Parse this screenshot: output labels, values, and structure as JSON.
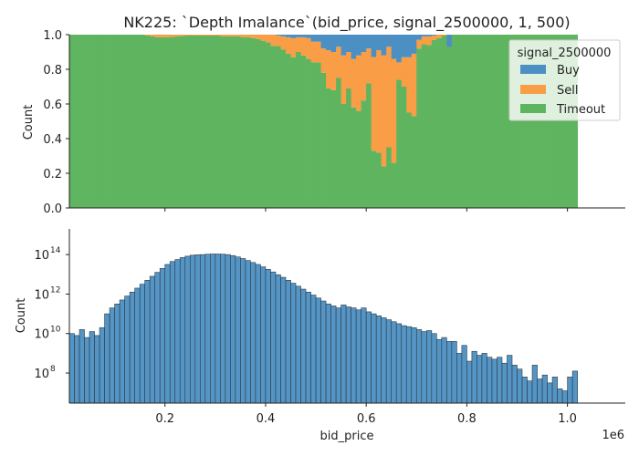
{
  "title": "NK225: `Depth Imalance`(bid_price, signal_2500000, 1, 500)",
  "colors": {
    "buy": "#4c8fc2",
    "sell": "#f99d46",
    "timeout": "#5fb55f",
    "hist_fill": "#4c8fc2",
    "hist_edge": "#2b3a47"
  },
  "chart_data": [
    {
      "type": "area",
      "subtype": "stacked-fill-histogram",
      "xlim": [
        10000,
        1115000
      ],
      "ylim": [
        0,
        1.0
      ],
      "ylabel": "Count",
      "yticks": [
        "0.0",
        "0.2",
        "0.4",
        "0.6",
        "0.8",
        "1.0"
      ],
      "ytick_values": [
        0,
        0.2,
        0.4,
        0.6,
        0.8,
        1.0
      ],
      "xticks_values": [
        200000,
        400000,
        600000,
        800000,
        1000000
      ],
      "legend_title": "signal_2500000",
      "legend_position": "upper right",
      "series": [
        {
          "name": "Buy",
          "key": "buy"
        },
        {
          "name": "Sell",
          "key": "sell"
        },
        {
          "name": "Timeout",
          "key": "timeout"
        }
      ],
      "bins": {
        "x_start": 10000,
        "bin_width": 10000,
        "timeout_top": [
          1,
          1,
          1,
          1,
          1,
          1,
          1,
          1,
          1,
          1,
          1,
          1,
          1,
          1,
          1,
          0.995,
          0.99,
          0.985,
          0.985,
          0.985,
          0.988,
          0.99,
          0.993,
          0.995,
          0.995,
          0.995,
          0.995,
          0.995,
          0.995,
          0.995,
          0.99,
          0.99,
          0.99,
          0.99,
          0.985,
          0.985,
          0.98,
          0.975,
          0.965,
          0.955,
          0.935,
          0.935,
          0.915,
          0.89,
          0.87,
          0.9,
          0.88,
          0.86,
          0.84,
          0.84,
          0.78,
          0.69,
          0.68,
          0.75,
          0.6,
          0.69,
          0.58,
          0.56,
          0.62,
          0.72,
          0.33,
          0.32,
          0.24,
          0.35,
          0.26,
          0.74,
          0.7,
          0.55,
          0.53,
          0.92,
          0.945,
          0.94,
          0.97,
          0.98,
          0.995,
          1,
          1,
          1,
          1,
          1,
          1,
          1,
          1,
          1,
          1,
          1,
          1,
          1,
          1,
          1,
          1,
          1,
          1,
          1,
          1,
          1,
          1,
          1,
          1,
          1,
          1
        ],
        "sell_top": [
          1,
          1,
          1,
          1,
          1,
          1,
          1,
          1,
          1,
          1,
          1,
          1,
          1,
          1,
          1,
          1,
          1,
          1,
          1,
          1,
          1,
          1,
          1,
          1,
          1,
          1,
          1,
          1,
          1,
          1,
          1,
          1,
          1,
          1,
          1,
          1,
          1,
          1,
          1,
          1,
          1,
          0.995,
          0.99,
          0.985,
          0.98,
          0.985,
          0.985,
          0.98,
          0.96,
          0.96,
          0.92,
          0.91,
          0.9,
          0.93,
          0.88,
          0.9,
          0.86,
          0.88,
          0.9,
          0.92,
          0.87,
          0.91,
          0.88,
          0.93,
          0.86,
          0.84,
          0.87,
          0.87,
          0.89,
          0.97,
          0.99,
          0.99,
          0.995,
          1,
          1,
          0.93,
          1,
          1,
          1,
          1,
          1,
          1,
          1,
          1,
          1,
          1,
          1,
          1,
          1,
          1,
          1,
          1,
          1,
          1,
          1,
          1,
          1,
          1,
          1,
          1,
          1
        ],
        "buy_top": [
          1,
          1,
          1,
          1,
          1,
          1,
          1,
          1,
          1,
          1,
          1,
          1,
          1,
          1,
          1,
          1,
          1,
          1,
          1,
          1,
          1,
          1,
          1,
          1,
          1,
          1,
          1,
          1,
          1,
          1,
          1,
          1,
          1,
          1,
          1,
          1,
          1,
          1,
          1,
          1,
          1,
          1,
          1,
          1,
          1,
          1,
          1,
          1,
          1,
          1,
          1,
          1,
          1,
          1,
          1,
          1,
          1,
          1,
          1,
          1,
          1,
          1,
          1,
          1,
          1,
          1,
          1,
          1,
          1,
          1,
          1,
          1,
          1,
          1,
          1,
          1,
          1,
          1,
          1,
          1,
          1,
          1,
          1,
          1,
          1,
          1,
          1,
          1,
          1,
          1,
          1,
          1,
          1,
          1,
          1,
          1,
          1,
          1,
          1,
          1,
          1,
          1
        ]
      }
    },
    {
      "type": "bar",
      "subtype": "histogram",
      "xlabel": "bid_price",
      "ylabel": "Count",
      "y_scale": "log",
      "ylim": [
        3000000,
        2000000000000000
      ],
      "xlim": [
        10000,
        1115000
      ],
      "yticks": [
        {
          "label_base": "10",
          "label_exp": "8",
          "value": 100000000
        },
        {
          "label_base": "10",
          "label_exp": "10",
          "value": 10000000000
        },
        {
          "label_base": "10",
          "label_exp": "12",
          "value": 1000000000000
        },
        {
          "label_base": "10",
          "label_exp": "14",
          "value": 100000000000000
        }
      ],
      "xticks": [
        "0.2",
        "0.4",
        "0.6",
        "0.8",
        "1.0"
      ],
      "xticks_values": [
        200000,
        400000,
        600000,
        800000,
        1000000
      ],
      "x_offset_label": "1e6",
      "bins": {
        "x_start": 10000,
        "bin_width": 10000,
        "log10_counts": [
          10.0,
          9.9,
          10.2,
          9.8,
          10.1,
          9.9,
          10.3,
          11.0,
          11.3,
          11.5,
          11.7,
          11.9,
          12.1,
          12.3,
          12.5,
          12.7,
          12.9,
          13.1,
          13.3,
          13.5,
          13.65,
          13.75,
          13.85,
          13.92,
          13.97,
          13.99,
          14.0,
          14.02,
          14.03,
          14.03,
          14.02,
          14.0,
          13.95,
          13.88,
          13.8,
          13.7,
          13.6,
          13.5,
          13.38,
          13.25,
          13.12,
          12.98,
          12.85,
          12.7,
          12.55,
          12.4,
          12.25,
          12.1,
          11.95,
          11.8,
          11.65,
          11.5,
          11.4,
          11.3,
          11.45,
          11.35,
          11.3,
          11.2,
          11.3,
          11.1,
          11.0,
          10.9,
          10.8,
          10.7,
          10.6,
          10.5,
          10.4,
          10.35,
          10.3,
          10.2,
          10.1,
          10.15,
          10.0,
          9.7,
          9.8,
          9.6,
          9.6,
          9.0,
          9.4,
          8.6,
          9.1,
          8.9,
          9.0,
          8.8,
          8.7,
          8.8,
          8.5,
          8.9,
          8.4,
          8.2,
          7.8,
          7.6,
          8.4,
          7.7,
          7.9,
          7.5,
          7.8,
          7.2,
          7.1,
          7.8,
          8.1
        ]
      }
    }
  ]
}
